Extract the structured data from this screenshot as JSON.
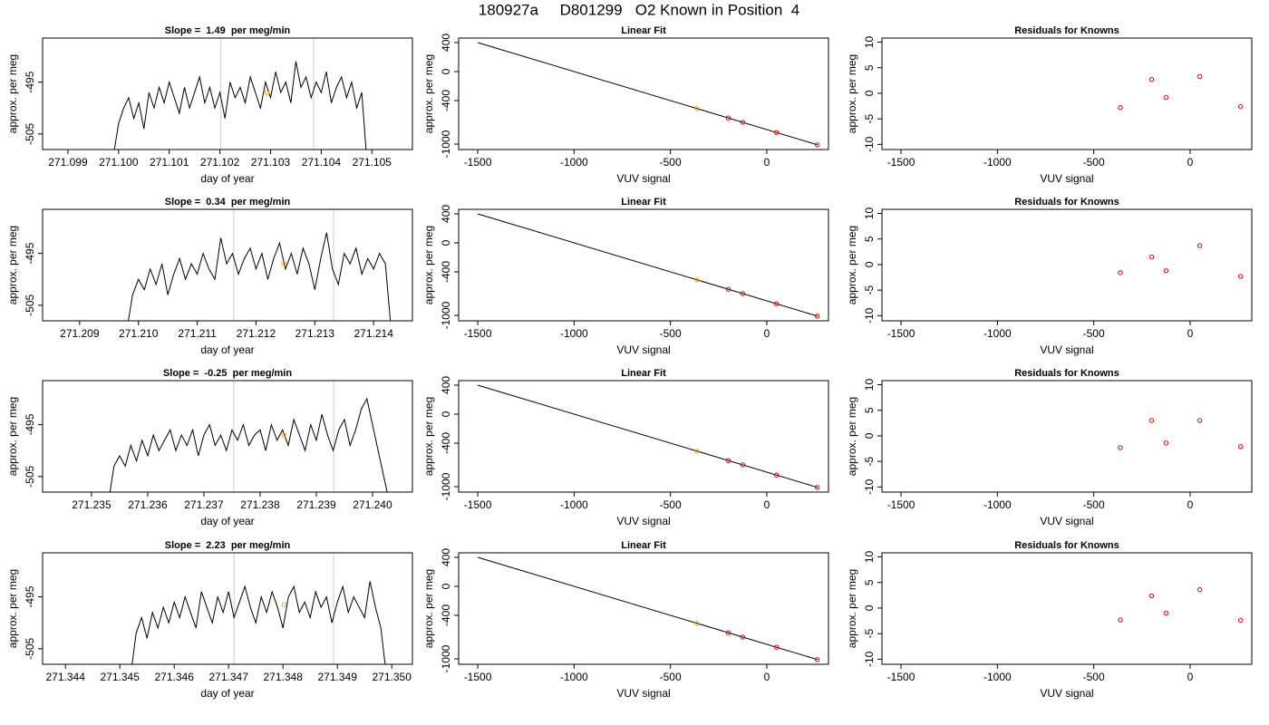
{
  "title": "180927a     D801299   O2 Known in Position  4",
  "chart_data": [
    {
      "type": "line",
      "title": "Slope =  1.49  per meg/min",
      "xlabel": "day of year",
      "ylabel": "approx. per meg",
      "xlim": [
        271.0985,
        271.1058
      ],
      "ylim": [
        -508,
        -486.5
      ],
      "xticks": [
        271.099,
        {
          "value": 271.1,
          "label": "271.100"
        },
        271.101,
        271.102,
        271.103,
        271.104,
        271.105
      ],
      "yticks": [
        -495,
        -505
      ],
      "vlines": [
        271.10202,
        271.10385
      ],
      "vline_color": "#cccccc",
      "color": "#000000",
      "highlight": {
        "x": 271.10293,
        "value": -497.1,
        "color": "#ffa500"
      },
      "x": [
        271.0999,
        271.1,
        271.1001,
        271.1002,
        271.1003,
        271.1004,
        271.1005,
        271.1006,
        271.1007,
        271.1008,
        271.1009,
        271.101,
        271.1011,
        271.1012,
        271.1013,
        271.1014,
        271.1015,
        271.1016,
        271.1017,
        271.1018,
        271.1019,
        271.102,
        271.1021,
        271.1022,
        271.1023,
        271.1024,
        271.1025,
        271.1026,
        271.1027,
        271.1028,
        271.1029,
        271.103,
        271.1031,
        271.1032,
        271.1033,
        271.1034,
        271.1035,
        271.1036,
        271.1037,
        271.1038,
        271.1039,
        271.104,
        271.1041,
        271.1042,
        271.1043,
        271.1044,
        271.1045,
        271.1046,
        271.1047,
        271.1048,
        271.1049
      ],
      "values": [
        -509,
        -503,
        -500,
        -498,
        -502,
        -499,
        -504,
        -497,
        -500,
        -496,
        -499,
        -495,
        -498,
        -501,
        -496,
        -500,
        -497,
        -494,
        -499,
        -496,
        -500,
        -497,
        -502,
        -495,
        -498,
        -496,
        -499,
        -494,
        -497,
        -500,
        -495,
        -498,
        -493,
        -497,
        -495,
        -499,
        -491,
        -496,
        -494,
        -498,
        -495,
        -497,
        -493,
        -499,
        -496,
        -494,
        -498,
        -495,
        -500,
        -497,
        -510
      ]
    },
    {
      "type": "scatter",
      "title": "Linear Fit",
      "xlabel": "VUV signal",
      "ylabel": "approx. per meg",
      "xlim": [
        -1599,
        320
      ],
      "ylim": [
        -1075,
        462
      ],
      "xticks": [
        -1500,
        -1000,
        -500,
        0
      ],
      "yticks": [
        400,
        0,
        -400,
        -1000
      ],
      "fit": {
        "x": [
          -1500,
          265
        ],
        "values": [
          400,
          -1012
        ],
        "color": "#000000"
      },
      "x": [
        -362,
        -200,
        -125,
        50,
        262
      ],
      "values": [
        -510,
        -640,
        -700,
        -840,
        -1010
      ],
      "colors": [
        "#ffa500",
        "#e00000",
        "#e00000",
        "#e00000",
        "#e00000"
      ]
    },
    {
      "type": "scatter",
      "title": "Residuals for Knowns",
      "xlabel": "VUV signal",
      "ylabel": "approx. per meg",
      "xlim": [
        -1599,
        320
      ],
      "ylim": [
        -11,
        10.8
      ],
      "xticks": [
        -1500,
        -1000,
        -500,
        0
      ],
      "yticks": [
        10,
        5,
        0,
        -5,
        -10
      ],
      "x": [
        -362,
        -200,
        -125,
        50,
        262
      ],
      "values": [
        -2.8,
        2.7,
        -0.8,
        3.3,
        -2.6
      ],
      "colors": [
        "#e00000",
        "#e00000",
        "#e00000",
        "#e00000",
        "#e00000"
      ]
    },
    {
      "type": "line",
      "title": "Slope =  0.34  per meg/min",
      "xlabel": "day of year",
      "ylabel": "approx. per meg",
      "xlim": [
        271.20837,
        271.21466
      ],
      "ylim": [
        -508,
        -486.5
      ],
      "xticks": [
        271.209,
        {
          "value": 271.21,
          "label": "271.210"
        },
        271.211,
        271.212,
        271.213,
        271.214
      ],
      "yticks": [
        -495,
        -505
      ],
      "vlines": [
        271.21162,
        271.21332
      ],
      "vline_color": "#cccccc",
      "color": "#000000",
      "highlight": {
        "x": 271.21247,
        "value": -497,
        "color": "#ffa500"
      },
      "x": [
        271.2098,
        271.2099,
        271.21,
        271.2101,
        271.2102,
        271.2103,
        271.2104,
        271.2105,
        271.2106,
        271.2107,
        271.2108,
        271.2109,
        271.211,
        271.2111,
        271.2112,
        271.2113,
        271.2114,
        271.2115,
        271.2116,
        271.2117,
        271.2118,
        271.2119,
        271.212,
        271.2121,
        271.2122,
        271.2123,
        271.2124,
        271.2125,
        271.2126,
        271.2127,
        271.2128,
        271.2129,
        271.213,
        271.2131,
        271.2132,
        271.2133,
        271.2134,
        271.2135,
        271.2136,
        271.2137,
        271.2138,
        271.2139,
        271.214,
        271.2141,
        271.2142,
        271.2143
      ],
      "values": [
        -510,
        -503,
        -500,
        -502,
        -498,
        -501,
        -497,
        -503,
        -499,
        -496,
        -500,
        -497,
        -499,
        -495,
        -498,
        -500,
        -492,
        -497,
        -495,
        -499,
        -496,
        -494,
        -498,
        -495,
        -500,
        -496,
        -493,
        -498,
        -495,
        -499,
        -494,
        -497,
        -502,
        -496,
        -491,
        -498,
        -501,
        -495,
        -497,
        -494,
        -499,
        -496,
        -498,
        -495,
        -497,
        -510
      ]
    },
    {
      "type": "scatter",
      "title": "Linear Fit",
      "xlabel": "VUV signal",
      "ylabel": "approx. per meg",
      "xlim": [
        -1599,
        320
      ],
      "ylim": [
        -1075,
        462
      ],
      "xticks": [
        -1500,
        -1000,
        -500,
        0
      ],
      "yticks": [
        400,
        0,
        -400,
        -1000
      ],
      "fit": {
        "x": [
          -1500,
          265
        ],
        "values": [
          400,
          -1012
        ],
        "color": "#000000"
      },
      "x": [
        -362,
        -200,
        -125,
        50,
        262
      ],
      "values": [
        -510,
        -640,
        -700,
        -840,
        -1010
      ],
      "colors": [
        "#ffa500",
        "#e00000",
        "#e00000",
        "#e00000",
        "#e00000"
      ]
    },
    {
      "type": "scatter",
      "title": "Residuals for Knowns",
      "xlabel": "VUV signal",
      "ylabel": "approx. per meg",
      "xlim": [
        -1599,
        320
      ],
      "ylim": [
        -11,
        10.8
      ],
      "xticks": [
        -1500,
        -1000,
        -500,
        0
      ],
      "yticks": [
        10,
        5,
        0,
        -5,
        -10
      ],
      "x": [
        -362,
        -200,
        -125,
        50,
        262
      ],
      "values": [
        -1.6,
        1.5,
        -1.2,
        3.7,
        -2.3
      ],
      "colors": [
        "#e00000",
        "#e00000",
        "#e00000",
        "#e00000",
        "#e00000"
      ]
    },
    {
      "type": "line",
      "title": "Slope =  -0.25  per meg/min",
      "xlabel": "day of year",
      "ylabel": "approx. per meg",
      "xlim": [
        271.23413,
        271.24071
      ],
      "ylim": [
        -508,
        -486.5
      ],
      "xticks": [
        271.235,
        271.236,
        271.237,
        271.238,
        271.239,
        {
          "value": 271.24,
          "label": "271.240"
        }
      ],
      "yticks": [
        -495,
        -505
      ],
      "vlines": [
        271.23753,
        271.23931
      ],
      "vline_color": "#cccccc",
      "color": "#000000",
      "highlight": {
        "x": 271.23842,
        "value": -497,
        "color": "#ffa500"
      },
      "x": [
        271.2353,
        271.2354,
        271.2355,
        271.2356,
        271.2357,
        271.2358,
        271.2359,
        271.236,
        271.2361,
        271.2362,
        271.2363,
        271.2364,
        271.2365,
        271.2366,
        271.2367,
        271.2368,
        271.2369,
        271.237,
        271.2371,
        271.2372,
        271.2373,
        271.2374,
        271.2375,
        271.2376,
        271.2377,
        271.2378,
        271.2379,
        271.238,
        271.2381,
        271.2382,
        271.2383,
        271.2384,
        271.2385,
        271.2386,
        271.2387,
        271.2388,
        271.2389,
        271.239,
        271.2391,
        271.2392,
        271.2393,
        271.2394,
        271.2395,
        271.2396,
        271.2397,
        271.2398,
        271.2399,
        271.24,
        271.2401,
        271.2402,
        271.2403
      ],
      "values": [
        -510,
        -503,
        -501,
        -503,
        -499,
        -502,
        -498,
        -501,
        -497,
        -500,
        -498,
        -496,
        -500,
        -497,
        -499,
        -496,
        -501,
        -497,
        -495,
        -499,
        -497,
        -500,
        -496,
        -498,
        -495,
        -499,
        -497,
        -496,
        -500,
        -495,
        -498,
        -496,
        -499,
        -494,
        -497,
        -500,
        -495,
        -498,
        -493,
        -497,
        -500,
        -496,
        -494,
        -499,
        -496,
        -492,
        -490,
        -495,
        -500,
        -505,
        -510
      ]
    },
    {
      "type": "scatter",
      "title": "Linear Fit",
      "xlabel": "VUV signal",
      "ylabel": "approx. per meg",
      "xlim": [
        -1599,
        320
      ],
      "ylim": [
        -1075,
        462
      ],
      "xticks": [
        -1500,
        -1000,
        -500,
        0
      ],
      "yticks": [
        400,
        0,
        -400,
        -1000
      ],
      "fit": {
        "x": [
          -1500,
          265
        ],
        "values": [
          400,
          -1012
        ],
        "color": "#000000"
      },
      "x": [
        -362,
        -200,
        -125,
        50,
        262
      ],
      "values": [
        -510,
        -640,
        -700,
        -840,
        -1010
      ],
      "colors": [
        "#ffa500",
        "#e00000",
        "#e00000",
        "#e00000",
        "#e00000"
      ]
    },
    {
      "type": "scatter",
      "title": "Residuals for Knowns",
      "xlabel": "VUV signal",
      "ylabel": "approx. per meg",
      "xlim": [
        -1599,
        320
      ],
      "ylim": [
        -11,
        10.8
      ],
      "xticks": [
        -1500,
        -1000,
        -500,
        0
      ],
      "yticks": [
        10,
        5,
        0,
        -5,
        -10
      ],
      "x": [
        -362,
        -200,
        -125,
        50,
        262
      ],
      "values": [
        -2.3,
        3.0,
        -1.4,
        3.0,
        -2.1
      ],
      "colors": [
        "#e00000",
        "#e00000",
        "#e00000",
        "#e00000",
        "#e00000"
      ]
    },
    {
      "type": "line",
      "title": "Slope =  2.23  per meg/min",
      "xlabel": "day of year",
      "ylabel": "approx. per meg",
      "xlim": [
        271.34358,
        271.35038
      ],
      "ylim": [
        -508,
        -486.5
      ],
      "xticks": [
        271.344,
        271.345,
        271.346,
        271.347,
        271.348,
        271.349,
        {
          "value": 271.35,
          "label": "271.350"
        }
      ],
      "yticks": [
        -495,
        -505
      ],
      "vlines": [
        271.3471,
        271.34893
      ],
      "vline_color": "#cccccc",
      "color": "#000000",
      "highlight": {
        "x": 271.34802,
        "value": -496.5,
        "color": "#ffa500"
      },
      "x": [
        271.3452,
        271.3453,
        271.3454,
        271.3455,
        271.3456,
        271.3457,
        271.3458,
        271.3459,
        271.346,
        271.3461,
        271.3462,
        271.3463,
        271.3464,
        271.3465,
        271.3466,
        271.3467,
        271.3468,
        271.3469,
        271.347,
        271.3471,
        271.3472,
        271.3473,
        271.3474,
        271.3475,
        271.3476,
        271.3477,
        271.3478,
        271.3479,
        271.348,
        271.3481,
        271.3482,
        271.3483,
        271.3484,
        271.3485,
        271.3486,
        271.3487,
        271.3488,
        271.3489,
        271.349,
        271.3491,
        271.3492,
        271.3493,
        271.3494,
        271.3495,
        271.3496,
        271.3497,
        271.3498,
        271.3499
      ],
      "values": [
        -510,
        -502,
        -499,
        -503,
        -498,
        -501,
        -497,
        -500,
        -496,
        -499,
        -495,
        -498,
        -501,
        -494,
        -497,
        -500,
        -495,
        -498,
        -494,
        -499,
        -496,
        -493,
        -497,
        -500,
        -495,
        -498,
        -494,
        -497,
        -501,
        -495,
        -493,
        -498,
        -496,
        -499,
        -494,
        -497,
        -495,
        -500,
        -496,
        -493,
        -498,
        -495,
        -497,
        -499,
        -492,
        -497,
        -501,
        -510
      ]
    },
    {
      "type": "scatter",
      "title": "Linear Fit",
      "xlabel": "VUV signal",
      "ylabel": "approx. per meg",
      "xlim": [
        -1599,
        320
      ],
      "ylim": [
        -1075,
        462
      ],
      "xticks": [
        -1500,
        -1000,
        -500,
        0
      ],
      "yticks": [
        400,
        0,
        -400,
        -1000
      ],
      "fit": {
        "x": [
          -1500,
          265
        ],
        "values": [
          400,
          -1012
        ],
        "color": "#000000"
      },
      "x": [
        -362,
        -200,
        -125,
        50,
        262
      ],
      "values": [
        -510,
        -640,
        -700,
        -840,
        -1010
      ],
      "colors": [
        "#ffa500",
        "#e00000",
        "#e00000",
        "#e00000",
        "#e00000"
      ]
    },
    {
      "type": "scatter",
      "title": "Residuals for Knowns",
      "xlabel": "VUV signal",
      "ylabel": "approx. per meg",
      "xlim": [
        -1599,
        320
      ],
      "ylim": [
        -11,
        10.8
      ],
      "xticks": [
        -1500,
        -1000,
        -500,
        0
      ],
      "yticks": [
        10,
        5,
        0,
        -5,
        -10
      ],
      "x": [
        -362,
        -200,
        -125,
        50,
        262
      ],
      "values": [
        -2.3,
        2.4,
        -1.0,
        3.6,
        -2.4
      ],
      "colors": [
        "#e00000",
        "#e00000",
        "#e00000",
        "#e00000",
        "#e00000"
      ]
    }
  ]
}
